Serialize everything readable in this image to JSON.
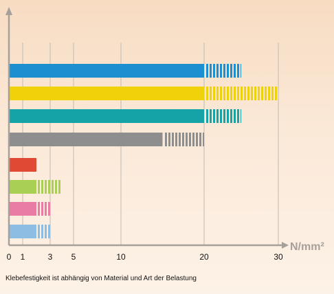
{
  "chart_data": {
    "type": "bar",
    "orientation": "horizontal",
    "title": "",
    "xlabel": "",
    "ylabel": "",
    "unit_label": "N/mm²",
    "footnote": "Klebefestigkeit ist abhängig von Material und Art der Belastung",
    "xlim": [
      0,
      30
    ],
    "axis_scale": "piecewise",
    "ticks": [
      {
        "value": 0,
        "label": "0"
      },
      {
        "value": 1,
        "label": "1"
      },
      {
        "value": 3,
        "label": "3"
      },
      {
        "value": 5,
        "label": "5"
      },
      {
        "value": 10,
        "label": "10"
      },
      {
        "value": 20,
        "label": "20"
      },
      {
        "value": 30,
        "label": "30"
      }
    ],
    "grid": true,
    "bars": [
      {
        "solid": 20,
        "hatched_to": 25,
        "color": "#1b8fd0"
      },
      {
        "solid": 20,
        "hatched_to": 30,
        "color": "#f0d20a"
      },
      {
        "solid": 20,
        "hatched_to": 25,
        "color": "#16a3a8"
      },
      {
        "solid": 15,
        "hatched_to": 20,
        "color": "#8e8e8e"
      },
      {
        "solid": 2,
        "hatched_to": 2,
        "color": "#e04a35"
      },
      {
        "solid": 2,
        "hatched_to": 4,
        "color": "#a9cf55"
      },
      {
        "solid": 2,
        "hatched_to": 3,
        "color": "#e87ca5"
      },
      {
        "solid": 2,
        "hatched_to": 3,
        "color": "#8dbde3"
      }
    ],
    "axis_color": "#a7a09a",
    "grid_color": "#c9c2bb",
    "text_color": "#111111"
  }
}
